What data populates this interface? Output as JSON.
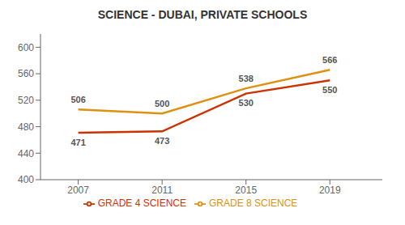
{
  "chart_data": {
    "type": "line",
    "title": "SCIENCE - DUBAI, PRIVATE SCHOOLS",
    "x": [
      2007,
      2011,
      2015,
      2019
    ],
    "series": [
      {
        "name": "GRADE 4 SCIENCE",
        "color": "#cc3300",
        "values": [
          471,
          473,
          530,
          550
        ]
      },
      {
        "name": "GRADE 8 SCIENCE",
        "color": "#e09010",
        "values": [
          506,
          500,
          538,
          566
        ]
      }
    ],
    "xlim": [
      2005.2,
      2021.5
    ],
    "xticks": [
      2007,
      2011,
      2015,
      2019
    ],
    "ylim": [
      400,
      620
    ],
    "yticks": [
      400,
      440,
      480,
      520,
      560,
      600
    ],
    "grid": false,
    "legend": "bottom",
    "data_labels": true
  }
}
